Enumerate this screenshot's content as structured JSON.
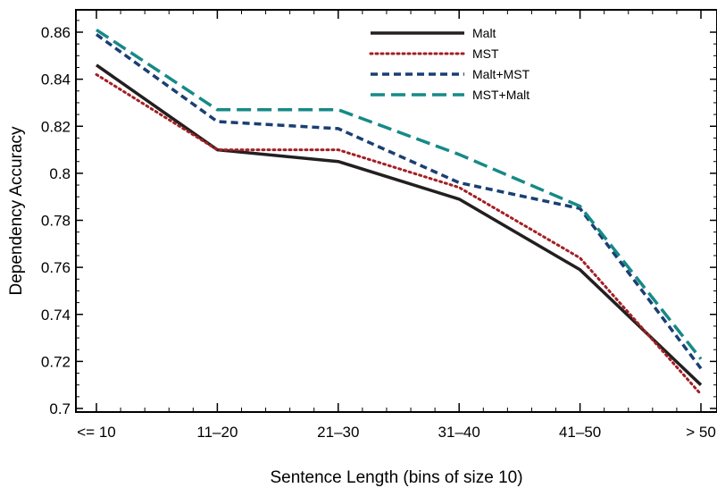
{
  "chart_data": {
    "type": "line",
    "categories": [
      "<= 10",
      "11–20",
      "21–30",
      "31–40",
      "41–50",
      "> 50"
    ],
    "xlabel": "Sentence Length (bins of size 10)",
    "ylabel": "Dependency Accuracy",
    "ylim": [
      0.7,
      0.87
    ],
    "yticks": [
      0.7,
      0.72,
      0.74,
      0.76,
      0.78,
      0.8,
      0.82,
      0.84,
      0.86
    ],
    "ytick_labels": [
      "0.7",
      "0.72",
      "0.74",
      "0.76",
      "0.78",
      "0.8",
      "0.82",
      "0.84",
      "0.86"
    ],
    "grid": false,
    "legend_position": "top-right",
    "series": [
      {
        "name": "Malt",
        "values": [
          0.846,
          0.81,
          0.805,
          0.789,
          0.759,
          0.71
        ],
        "color": "#231f20",
        "style": "solid"
      },
      {
        "name": "MST",
        "values": [
          0.842,
          0.81,
          0.81,
          0.794,
          0.764,
          0.706
        ],
        "color": "#a31f24",
        "style": "dotted"
      },
      {
        "name": "Malt+MST",
        "values": [
          0.859,
          0.822,
          0.819,
          0.796,
          0.785,
          0.717
        ],
        "color": "#1a3f73",
        "style": "dashed"
      },
      {
        "name": "MST+Malt",
        "values": [
          0.861,
          0.827,
          0.827,
          0.808,
          0.786,
          0.721
        ],
        "color": "#168a87",
        "style": "longdash"
      }
    ]
  }
}
